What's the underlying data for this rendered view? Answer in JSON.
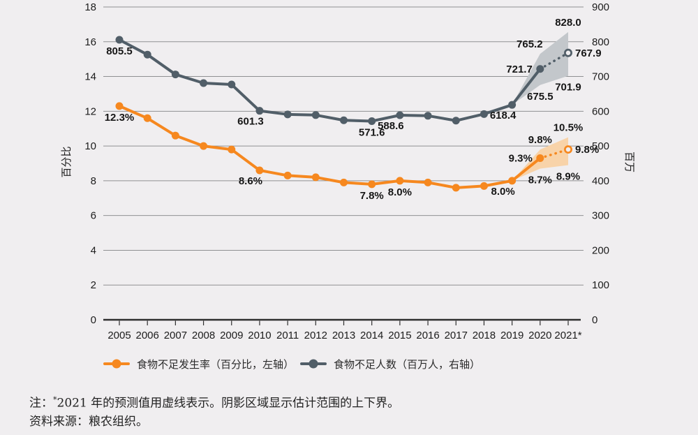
{
  "figure": {
    "background": "#f0eef0",
    "gridline_color": "#8f9092",
    "axis_line_color": "#2e2e2e"
  },
  "legend": {
    "items": [
      {
        "label": "食物不足发生率（百分比，左轴）",
        "color": "#F6881F"
      },
      {
        "label": "食物不足人数（百万人，右轴）",
        "color": "#515E68"
      }
    ]
  },
  "notes": {
    "prefix": "注：",
    "star": "*",
    "body": "2021 年的预测值用虚线表示。阴影区域显示估计范围的上下界。",
    "source": "资料来源：粮农组织。"
  },
  "chart_data": {
    "type": "line",
    "title": "",
    "x": [
      2005,
      2006,
      2007,
      2008,
      2009,
      2010,
      2011,
      2012,
      2013,
      2014,
      2015,
      2016,
      2017,
      2018,
      2019,
      2020,
      2021
    ],
    "x_tick_labels": [
      "2005",
      "2006",
      "2007",
      "2008",
      "2009",
      "2010",
      "2011",
      "2012",
      "2013",
      "2014",
      "2015",
      "2016",
      "2017",
      "2018",
      "2019",
      "2020",
      "2021*"
    ],
    "left_axis": {
      "label": "百分比",
      "max": 18,
      "ticks": [
        0,
        2,
        4,
        6,
        8,
        10,
        12,
        14,
        16,
        18
      ]
    },
    "right_axis": {
      "label": "百万",
      "max": 900,
      "ticks": [
        0,
        100,
        200,
        300,
        400,
        500,
        600,
        700,
        800,
        900
      ]
    },
    "grid": true,
    "legend_position": "bottom",
    "series": [
      {
        "key": "pou",
        "name": "食物不足发生率（百分比，左轴）",
        "axis": "left",
        "unit": "percent",
        "color": "#F6881F",
        "values": [
          12.3,
          11.6,
          10.6,
          10.0,
          9.8,
          8.6,
          8.3,
          8.2,
          7.9,
          7.8,
          8.0,
          7.9,
          7.6,
          7.7,
          8.0,
          9.3,
          9.8
        ],
        "projection_from_index": 15,
        "band": {
          "x_indices": [
            14,
            15,
            16
          ],
          "upper": [
            8.0,
            9.8,
            10.5
          ],
          "lower": [
            8.0,
            8.7,
            8.9
          ],
          "color": "#F8D3A9"
        }
      },
      {
        "key": "nou",
        "name": "食物不足人数（百万人，右轴）",
        "axis": "right",
        "unit": "millions",
        "color": "#515E68",
        "values": [
          805.5,
          763,
          706,
          681,
          677,
          601.3,
          591,
          589,
          574,
          571.6,
          588.6,
          587,
          573,
          592,
          618.4,
          721.7,
          767.9
        ],
        "projection_from_index": 15,
        "band": {
          "x_indices": [
            14,
            15,
            16
          ],
          "upper": [
            618.4,
            765.2,
            828.0
          ],
          "lower": [
            618.4,
            675.5,
            701.9
          ],
          "color": "#C3C7CB"
        }
      }
    ],
    "annotations": [
      {
        "series": 0,
        "x_index": 0,
        "value": 12.3,
        "text": "12.3%",
        "placement": "below"
      },
      {
        "series": 0,
        "x_index": 5,
        "value": 8.6,
        "text": "8.6%",
        "placement": "below-left"
      },
      {
        "series": 0,
        "x_index": 9,
        "value": 7.8,
        "text": "7.8%",
        "placement": "below"
      },
      {
        "series": 0,
        "x_index": 10,
        "value": 8.0,
        "text": "8.0%",
        "placement": "below"
      },
      {
        "series": 0,
        "x_index": 14,
        "value": 8.0,
        "text": "8.0%",
        "placement": "below-left"
      },
      {
        "series": 0,
        "x_index": 15,
        "value": 9.3,
        "text": "9.3%",
        "placement": "left"
      },
      {
        "series": 0,
        "x_index": 15,
        "value": 9.8,
        "text": "9.8%",
        "placement": "above"
      },
      {
        "series": 0,
        "x_index": 15,
        "value": 8.7,
        "text": "8.7%",
        "placement": "below"
      },
      {
        "series": 0,
        "x_index": 16,
        "value": 10.5,
        "text": "10.5%",
        "placement": "above"
      },
      {
        "series": 0,
        "x_index": 16,
        "value": 8.9,
        "text": "8.9%",
        "placement": "below"
      },
      {
        "series": 0,
        "x_index": 16,
        "value": 9.8,
        "text": "9.8%",
        "placement": "right"
      },
      {
        "series": 1,
        "x_index": 0,
        "value": 805.5,
        "text": "805.5",
        "placement": "below"
      },
      {
        "series": 1,
        "x_index": 5,
        "value": 601.3,
        "text": "601.3",
        "placement": "below-left"
      },
      {
        "series": 1,
        "x_index": 9,
        "value": 571.6,
        "text": "571.6",
        "placement": "below"
      },
      {
        "series": 1,
        "x_index": 10,
        "value": 588.6,
        "text": "588.6",
        "placement": "below-left"
      },
      {
        "series": 1,
        "x_index": 14,
        "value": 618.4,
        "text": "618.4",
        "placement": "below-left"
      },
      {
        "series": 1,
        "x_index": 15,
        "value": 721.7,
        "text": "721.7",
        "placement": "left"
      },
      {
        "series": 1,
        "x_index": 15,
        "value": 765.2,
        "text": "765.2",
        "placement": "above-left"
      },
      {
        "series": 1,
        "x_index": 15,
        "value": 675.5,
        "text": "675.5",
        "placement": "below"
      },
      {
        "series": 1,
        "x_index": 16,
        "value": 828.0,
        "text": "828.0",
        "placement": "above"
      },
      {
        "series": 1,
        "x_index": 16,
        "value": 701.9,
        "text": "701.9",
        "placement": "below"
      },
      {
        "series": 1,
        "x_index": 16,
        "value": 767.9,
        "text": "767.9",
        "placement": "right"
      }
    ]
  }
}
